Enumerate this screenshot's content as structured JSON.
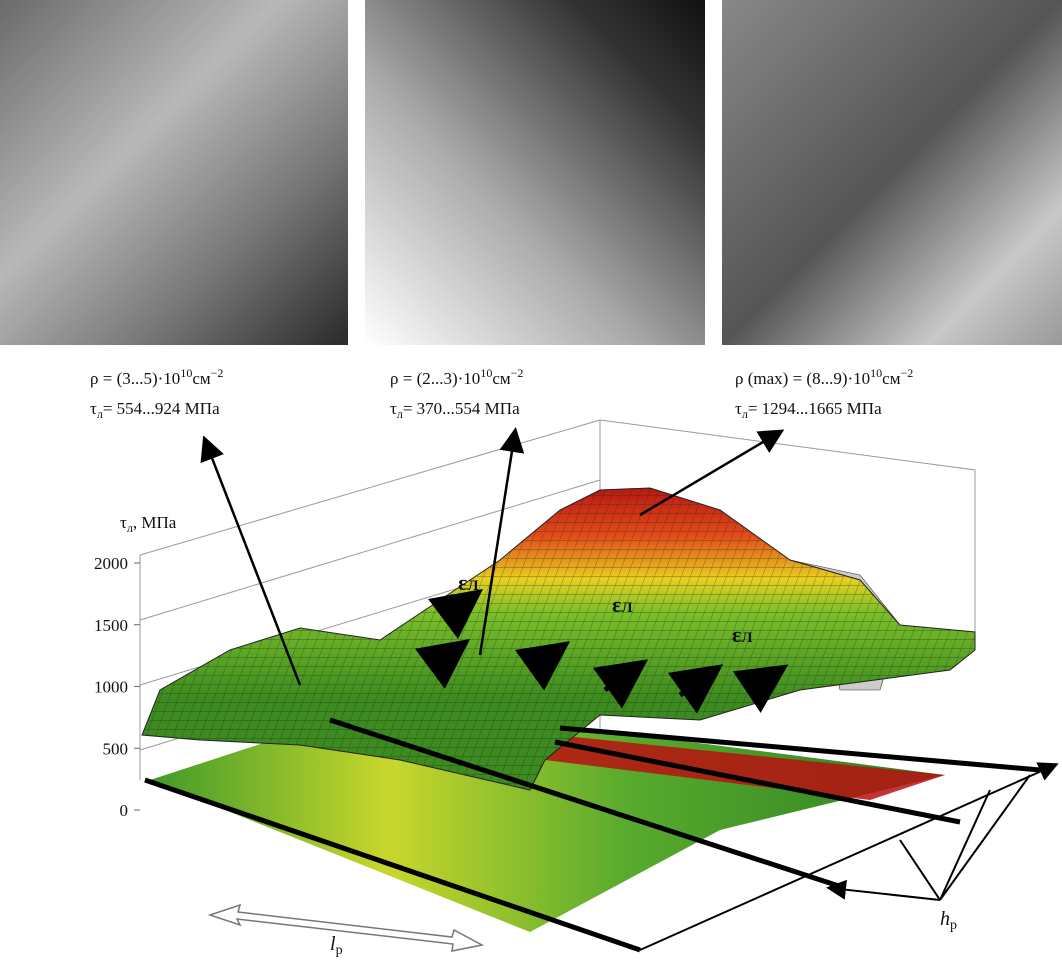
{
  "annotations": [
    {
      "density": {
        "prefix": "ρ = (3...5)·10",
        "exp": "10",
        "unit": "см",
        "unit_exp": "−2"
      },
      "stress": {
        "symbol": "τ",
        "sub": "л",
        "text": "= 554...924 МПа"
      }
    },
    {
      "density": {
        "prefix": "ρ = (2...3)·10",
        "exp": "10",
        "unit": "см",
        "unit_exp": "−2"
      },
      "stress": {
        "symbol": "τ",
        "sub": "л",
        "text": "= 370...554 МПа"
      }
    },
    {
      "density": {
        "prefix": "ρ (max) = (8...9)·10",
        "exp": "10",
        "unit": "см",
        "unit_exp": "−2"
      },
      "stress": {
        "symbol": "τ",
        "sub": "л",
        "text": "= 1294...1665 МПа"
      }
    }
  ],
  "axis": {
    "label": {
      "symbol": "τ",
      "sub": "л",
      "text": ", МПа"
    },
    "ticks": [
      0,
      500,
      1000,
      1500,
      2000
    ]
  },
  "strain_label": {
    "symbol": "ε",
    "sub": "Л"
  },
  "length_label": {
    "symbol": "l",
    "sub": "р"
  },
  "depth_label": {
    "symbol": "h",
    "sub": "р"
  }
}
